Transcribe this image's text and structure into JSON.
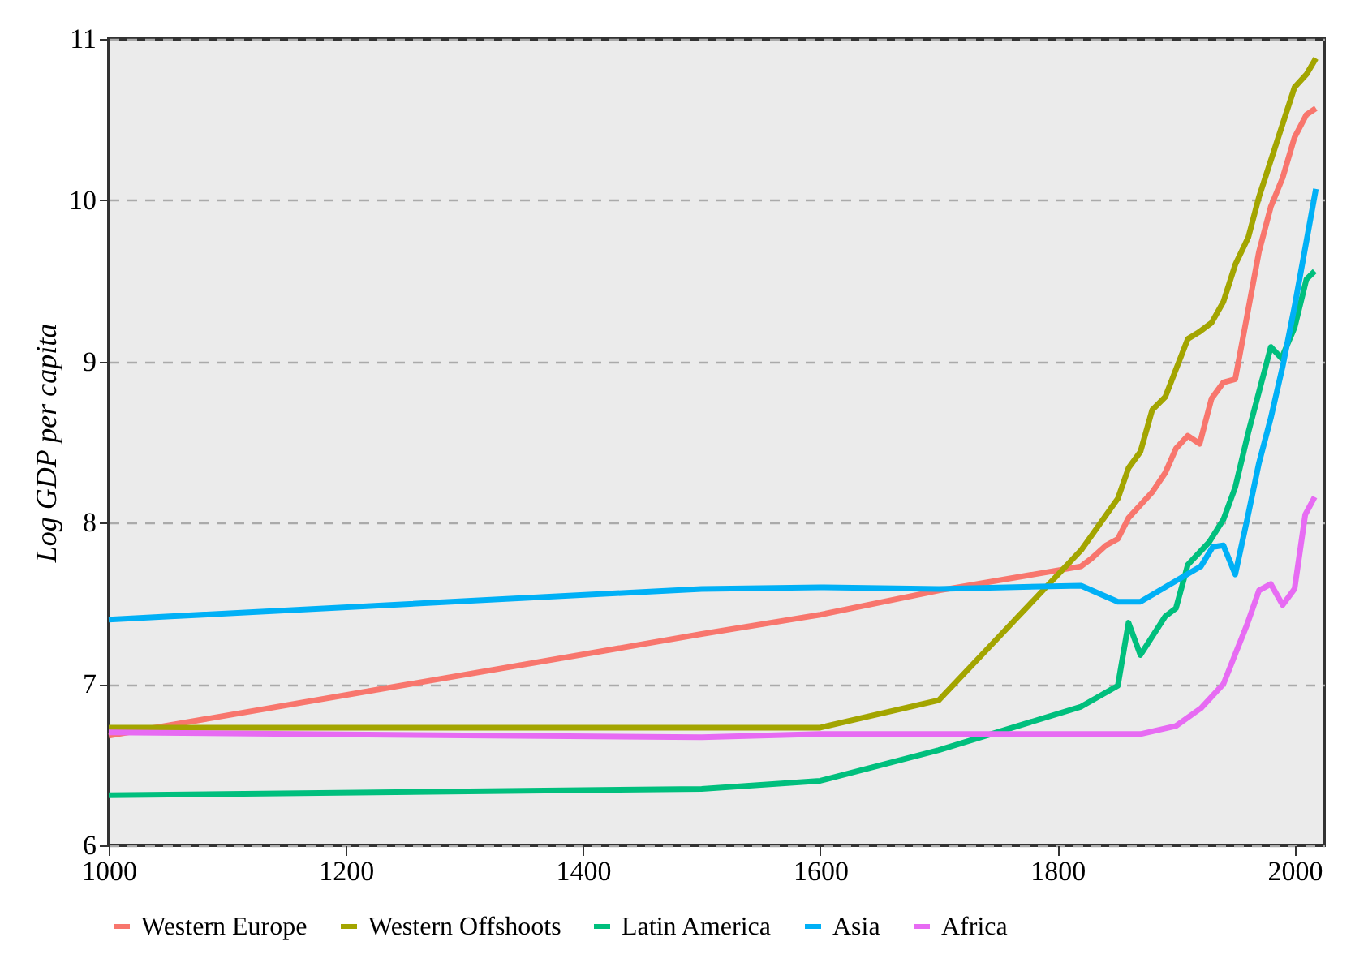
{
  "chart_data": {
    "type": "line",
    "ylabel": "Log GDP per capita",
    "xlim": [
      1000,
      2025
    ],
    "ylim": [
      6,
      11
    ],
    "xticks": [
      1000,
      1200,
      1400,
      1600,
      1800,
      2000
    ],
    "yticks": [
      6,
      7,
      8,
      9,
      10,
      11
    ],
    "grid": "y",
    "legend": "bottom",
    "marker": "none",
    "line_style": "solid",
    "series": [
      {
        "name": "Western Europe",
        "color": "#f8766d",
        "x": [
          1000,
          1500,
          1600,
          1700,
          1820,
          1829,
          1841,
          1851,
          1860,
          1880,
          1891,
          1900,
          1910,
          1920,
          1930,
          1940,
          1950,
          1970,
          1980,
          1990,
          2000,
          2010,
          2018
        ],
        "values": [
          6.68,
          7.31,
          7.43,
          7.58,
          7.73,
          7.78,
          7.86,
          7.9,
          8.03,
          8.19,
          8.31,
          8.46,
          8.54,
          8.49,
          8.77,
          8.87,
          8.89,
          9.68,
          9.96,
          10.14,
          10.39,
          10.53,
          10.57
        ]
      },
      {
        "name": "Western Offshoots",
        "color": "#a3a500",
        "x": [
          1000,
          1500,
          1600,
          1700,
          1820,
          1851,
          1860,
          1870,
          1880,
          1891,
          1910,
          1919,
          1930,
          1940,
          1950,
          1961,
          1970,
          2000,
          2010,
          2018
        ],
        "values": [
          6.73,
          6.73,
          6.73,
          6.9,
          7.83,
          8.15,
          8.34,
          8.44,
          8.7,
          8.78,
          9.14,
          9.18,
          9.24,
          9.37,
          9.6,
          9.77,
          10.02,
          10.7,
          10.78,
          10.88
        ]
      },
      {
        "name": "Latin America",
        "color": "#00bf7d",
        "x": [
          1000,
          1500,
          1600,
          1700,
          1820,
          1851,
          1860,
          1870,
          1891,
          1900,
          1910,
          1928,
          1940,
          1950,
          1961,
          1980,
          1989,
          2000,
          2010,
          2017
        ],
        "values": [
          6.31,
          6.35,
          6.4,
          6.59,
          6.86,
          6.99,
          7.38,
          7.18,
          7.42,
          7.47,
          7.74,
          7.88,
          8.02,
          8.22,
          8.56,
          9.09,
          9.02,
          9.21,
          9.51,
          9.56
        ]
      },
      {
        "name": "Asia",
        "color": "#00b0f6",
        "x": [
          1000,
          1500,
          1600,
          1700,
          1820,
          1851,
          1870,
          1900,
          1921,
          1931,
          1940,
          1950,
          1960,
          1970,
          1980,
          1990,
          2000,
          2018
        ],
        "values": [
          7.4,
          7.59,
          7.6,
          7.59,
          7.61,
          7.51,
          7.51,
          7.64,
          7.73,
          7.85,
          7.86,
          7.68,
          8.02,
          8.37,
          8.65,
          8.97,
          9.34,
          10.07
        ]
      },
      {
        "name": "Africa",
        "color": "#e76bf3",
        "x": [
          1000,
          1500,
          1600,
          1700,
          1820,
          1870,
          1900,
          1921,
          1940,
          1960,
          1970,
          1980,
          1990,
          2000,
          2009,
          2017
        ],
        "values": [
          6.7,
          6.67,
          6.69,
          6.69,
          6.69,
          6.69,
          6.74,
          6.85,
          7.0,
          7.37,
          7.58,
          7.62,
          7.49,
          7.59,
          8.05,
          8.16
        ]
      }
    ]
  }
}
